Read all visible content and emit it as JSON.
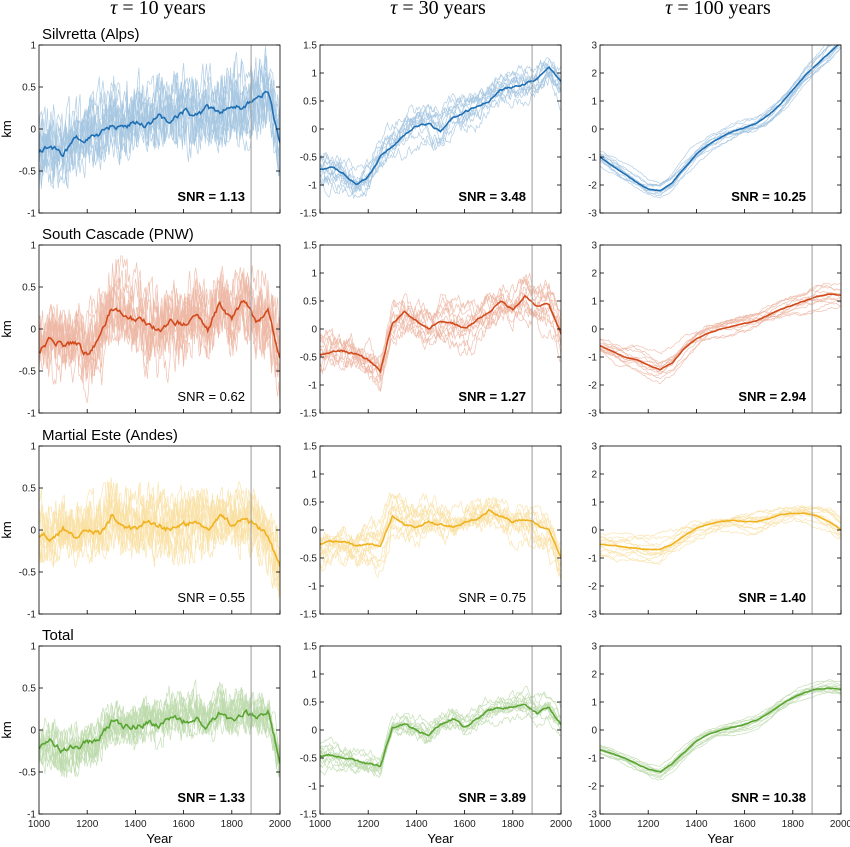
{
  "figure": {
    "column_titles": [
      {
        "symbol": "τ",
        "rest": " = 10 years"
      },
      {
        "symbol": "τ",
        "rest": " = 30 years"
      },
      {
        "symbol": "τ",
        "rest": " = 100 years"
      }
    ],
    "row_titles": [
      "Silvretta (Alps)",
      "South Cascade (PNW)",
      "Martial Este (Andes)",
      "Total"
    ],
    "ylabel": "km",
    "xlabel": "Year",
    "colors": {
      "Silvretta (Alps)": "#1f6fb4",
      "South Cascade (PNW)": "#d24a1c",
      "Martial Este (Andes)": "#f0b21e",
      "Total": "#5aa532",
      "reference_line": "#999999"
    },
    "reference_year": 1880
  },
  "chart_data": [
    {
      "type": "line",
      "row": 0,
      "col": 0,
      "title": "Silvretta (Alps)",
      "xlim": [
        1000,
        2000
      ],
      "ylim": [
        -1,
        1
      ],
      "yticks": [
        "-1",
        "-0.5",
        "0",
        "0.5",
        "1"
      ],
      "xticks": [],
      "ylabel": "km",
      "xlabel": "",
      "annotation": "SNR = 1.13",
      "annotation_bold": true,
      "ensemble_spread": 0.3,
      "x": [
        1000,
        1050,
        1100,
        1150,
        1200,
        1250,
        1300,
        1350,
        1400,
        1450,
        1500,
        1550,
        1600,
        1650,
        1700,
        1750,
        1800,
        1850,
        1900,
        1950,
        2000
      ],
      "series": [
        {
          "values": [
            -0.25,
            -0.2,
            -0.3,
            -0.15,
            -0.1,
            -0.05,
            0.05,
            0.0,
            0.1,
            0.05,
            0.15,
            0.1,
            0.2,
            0.15,
            0.25,
            0.2,
            0.3,
            0.25,
            0.35,
            0.45,
            -0.2
          ]
        }
      ]
    },
    {
      "type": "line",
      "row": 0,
      "col": 1,
      "title": "",
      "xlim": [
        1000,
        2000
      ],
      "ylim": [
        -1.5,
        1.5
      ],
      "yticks": [
        "-1.5",
        "-1",
        "-0.5",
        "0",
        "0.5",
        "1",
        "1.5"
      ],
      "xticks": [],
      "ylabel": "",
      "xlabel": "",
      "annotation": "SNR = 3.48",
      "annotation_bold": true,
      "ensemble_spread": 0.3,
      "x": [
        1000,
        1050,
        1100,
        1150,
        1200,
        1250,
        1300,
        1350,
        1400,
        1450,
        1500,
        1550,
        1600,
        1650,
        1700,
        1750,
        1800,
        1850,
        1900,
        1950,
        2000
      ],
      "series": [
        {
          "values": [
            -0.7,
            -0.7,
            -0.8,
            -1.0,
            -0.85,
            -0.5,
            -0.3,
            -0.1,
            0.05,
            0.1,
            -0.05,
            0.2,
            0.3,
            0.4,
            0.5,
            0.7,
            0.75,
            0.8,
            0.9,
            1.1,
            0.85
          ]
        }
      ]
    },
    {
      "type": "line",
      "row": 0,
      "col": 2,
      "title": "",
      "xlim": [
        1000,
        2000
      ],
      "ylim": [
        -3,
        3
      ],
      "yticks": [
        "-3",
        "-2",
        "-1",
        "0",
        "1",
        "2",
        "3"
      ],
      "xticks": [],
      "ylabel": "",
      "xlabel": "",
      "annotation": "SNR = 10.25",
      "annotation_bold": true,
      "ensemble_spread": 0.35,
      "x": [
        1000,
        1050,
        1100,
        1150,
        1200,
        1250,
        1300,
        1350,
        1400,
        1450,
        1500,
        1550,
        1600,
        1650,
        1700,
        1750,
        1800,
        1850,
        1900,
        1950,
        2000
      ],
      "series": [
        {
          "values": [
            -1.0,
            -1.3,
            -1.6,
            -1.9,
            -2.15,
            -2.2,
            -1.9,
            -1.4,
            -0.9,
            -0.55,
            -0.3,
            -0.1,
            0.05,
            0.2,
            0.5,
            0.9,
            1.4,
            1.9,
            2.3,
            2.7,
            3.1
          ]
        }
      ]
    },
    {
      "type": "line",
      "row": 1,
      "col": 0,
      "title": "South Cascade (PNW)",
      "xlim": [
        1000,
        2000
      ],
      "ylim": [
        -1,
        1
      ],
      "yticks": [
        "-1",
        "-0.5",
        "0",
        "0.5",
        "1"
      ],
      "xticks": [],
      "ylabel": "km",
      "xlabel": "",
      "annotation": "SNR = 0.62",
      "annotation_bold": false,
      "ensemble_spread": 0.3,
      "x": [
        1000,
        1050,
        1100,
        1150,
        1200,
        1250,
        1300,
        1350,
        1400,
        1450,
        1500,
        1550,
        1600,
        1650,
        1700,
        1750,
        1800,
        1850,
        1900,
        1950,
        2000
      ],
      "series": [
        {
          "values": [
            -0.25,
            -0.1,
            -0.2,
            -0.15,
            -0.3,
            -0.1,
            0.25,
            0.2,
            0.1,
            0.05,
            0.0,
            0.1,
            0.05,
            0.2,
            0.0,
            0.3,
            0.1,
            0.35,
            0.1,
            0.2,
            -0.35
          ]
        }
      ]
    },
    {
      "type": "line",
      "row": 1,
      "col": 1,
      "title": "",
      "xlim": [
        1000,
        2000
      ],
      "ylim": [
        -1.5,
        1.5
      ],
      "yticks": [
        "-1.5",
        "-1",
        "-0.5",
        "0",
        "0.5",
        "1",
        "1.5"
      ],
      "xticks": [],
      "ylabel": "",
      "xlabel": "",
      "annotation": "SNR = 1.27",
      "annotation_bold": true,
      "ensemble_spread": 0.35,
      "x": [
        1000,
        1050,
        1100,
        1150,
        1200,
        1250,
        1300,
        1350,
        1400,
        1450,
        1500,
        1550,
        1600,
        1650,
        1700,
        1750,
        1800,
        1850,
        1900,
        1950,
        2000
      ],
      "series": [
        {
          "values": [
            -0.45,
            -0.4,
            -0.4,
            -0.45,
            -0.55,
            -0.75,
            0.1,
            0.3,
            0.15,
            0.0,
            0.15,
            0.1,
            0.0,
            0.15,
            0.3,
            0.5,
            0.35,
            0.6,
            0.4,
            0.45,
            -0.1
          ]
        }
      ]
    },
    {
      "type": "line",
      "row": 1,
      "col": 2,
      "title": "",
      "xlim": [
        1000,
        2000
      ],
      "ylim": [
        -3,
        3
      ],
      "yticks": [
        "-3",
        "-2",
        "-1",
        "0",
        "1",
        "2",
        "3"
      ],
      "xticks": [],
      "ylabel": "",
      "xlabel": "",
      "annotation": "SNR = 2.94",
      "annotation_bold": true,
      "ensemble_spread": 0.45,
      "x": [
        1000,
        1050,
        1100,
        1150,
        1200,
        1250,
        1300,
        1350,
        1400,
        1450,
        1500,
        1550,
        1600,
        1650,
        1700,
        1750,
        1800,
        1850,
        1900,
        1950,
        2000
      ],
      "series": [
        {
          "values": [
            -0.6,
            -0.8,
            -1.0,
            -1.1,
            -1.3,
            -1.45,
            -1.2,
            -0.7,
            -0.35,
            -0.15,
            0.0,
            0.1,
            0.2,
            0.3,
            0.5,
            0.7,
            0.85,
            1.0,
            1.15,
            1.25,
            1.2
          ]
        }
      ]
    },
    {
      "type": "line",
      "row": 2,
      "col": 0,
      "title": "Martial Este (Andes)",
      "xlim": [
        1000,
        2000
      ],
      "ylim": [
        -1,
        1
      ],
      "yticks": [
        "-1",
        "-0.5",
        "0",
        "0.5",
        "1"
      ],
      "xticks": [],
      "ylabel": "km",
      "xlabel": "",
      "annotation": "SNR = 0.55",
      "annotation_bold": false,
      "ensemble_spread": 0.25,
      "x": [
        1000,
        1050,
        1100,
        1150,
        1200,
        1250,
        1300,
        1350,
        1400,
        1450,
        1500,
        1550,
        1600,
        1650,
        1700,
        1750,
        1800,
        1850,
        1900,
        1950,
        2000
      ],
      "series": [
        {
          "values": [
            -0.05,
            -0.1,
            0.0,
            -0.1,
            -0.05,
            -0.05,
            0.15,
            0.05,
            0.0,
            0.1,
            0.05,
            0.0,
            0.05,
            0.1,
            0.0,
            0.15,
            0.05,
            0.1,
            0.05,
            -0.05,
            -0.45
          ]
        }
      ]
    },
    {
      "type": "line",
      "row": 2,
      "col": 1,
      "title": "",
      "xlim": [
        1000,
        2000
      ],
      "ylim": [
        -1.5,
        1.5
      ],
      "yticks": [
        "-1.5",
        "-1",
        "-0.5",
        "0",
        "0.5",
        "1",
        "1.5"
      ],
      "xticks": [],
      "ylabel": "",
      "xlabel": "",
      "annotation": "SNR = 0.75",
      "annotation_bold": false,
      "ensemble_spread": 0.35,
      "x": [
        1000,
        1050,
        1100,
        1150,
        1200,
        1250,
        1300,
        1350,
        1400,
        1450,
        1500,
        1550,
        1600,
        1650,
        1700,
        1750,
        1800,
        1850,
        1900,
        1950,
        2000
      ],
      "series": [
        {
          "values": [
            -0.25,
            -0.2,
            -0.2,
            -0.3,
            -0.25,
            -0.3,
            0.25,
            0.1,
            0.05,
            0.15,
            0.1,
            0.05,
            0.15,
            0.2,
            0.35,
            0.25,
            0.15,
            0.2,
            0.1,
            0.0,
            -0.5
          ]
        }
      ]
    },
    {
      "type": "line",
      "row": 2,
      "col": 2,
      "title": "",
      "xlim": [
        1000,
        2000
      ],
      "ylim": [
        -3,
        3
      ],
      "yticks": [
        "-3",
        "-2",
        "-1",
        "0",
        "1",
        "2",
        "3"
      ],
      "xticks": [],
      "ylabel": "",
      "xlabel": "",
      "annotation": "SNR = 1.40",
      "annotation_bold": true,
      "ensemble_spread": 0.5,
      "x": [
        1000,
        1050,
        1100,
        1150,
        1200,
        1250,
        1300,
        1350,
        1400,
        1450,
        1500,
        1550,
        1600,
        1650,
        1700,
        1750,
        1800,
        1850,
        1900,
        1950,
        2000
      ],
      "series": [
        {
          "values": [
            -0.5,
            -0.55,
            -0.6,
            -0.65,
            -0.7,
            -0.7,
            -0.5,
            -0.2,
            0.05,
            0.2,
            0.3,
            0.35,
            0.3,
            0.3,
            0.4,
            0.55,
            0.6,
            0.6,
            0.5,
            0.3,
            0.0
          ]
        }
      ]
    },
    {
      "type": "line",
      "row": 3,
      "col": 0,
      "title": "Total",
      "xlim": [
        1000,
        2000
      ],
      "ylim": [
        -1,
        1
      ],
      "yticks": [
        "-1",
        "-0.5",
        "0",
        "0.5",
        "1"
      ],
      "xticks": [
        "1000",
        "1200",
        "1400",
        "1600",
        "1800",
        "2000"
      ],
      "ylabel": "km",
      "xlabel": "Year",
      "annotation": "SNR = 1.33",
      "annotation_bold": true,
      "ensemble_spread": 0.18,
      "x": [
        1000,
        1050,
        1100,
        1150,
        1200,
        1250,
        1300,
        1350,
        1400,
        1450,
        1500,
        1550,
        1600,
        1650,
        1700,
        1750,
        1800,
        1850,
        1900,
        1950,
        2000
      ],
      "series": [
        {
          "values": [
            -0.2,
            -0.15,
            -0.25,
            -0.2,
            -0.15,
            -0.1,
            0.1,
            0.05,
            0.05,
            0.1,
            0.05,
            0.15,
            0.1,
            0.15,
            0.05,
            0.2,
            0.1,
            0.2,
            0.15,
            0.2,
            -0.35
          ]
        }
      ]
    },
    {
      "type": "line",
      "row": 3,
      "col": 1,
      "title": "",
      "xlim": [
        1000,
        2000
      ],
      "ylim": [
        -1.5,
        1.5
      ],
      "yticks": [
        "-1.5",
        "-1",
        "-0.5",
        "0",
        "0.5",
        "1",
        "1.5"
      ],
      "xticks": [
        "1000",
        "1200",
        "1400",
        "1600",
        "1800",
        "2000"
      ],
      "ylabel": "",
      "xlabel": "Year",
      "annotation": "SNR = 3.89",
      "annotation_bold": true,
      "ensemble_spread": 0.2,
      "x": [
        1000,
        1050,
        1100,
        1150,
        1200,
        1250,
        1300,
        1350,
        1400,
        1450,
        1500,
        1550,
        1600,
        1650,
        1700,
        1750,
        1800,
        1850,
        1900,
        1950,
        2000
      ],
      "series": [
        {
          "values": [
            -0.45,
            -0.45,
            -0.5,
            -0.55,
            -0.6,
            -0.65,
            0.05,
            0.1,
            0.0,
            -0.1,
            0.1,
            0.2,
            0.05,
            0.2,
            0.35,
            0.4,
            0.4,
            0.45,
            0.3,
            0.4,
            0.1
          ]
        }
      ]
    },
    {
      "type": "line",
      "row": 3,
      "col": 2,
      "title": "",
      "xlim": [
        1000,
        2000
      ],
      "ylim": [
        -3,
        3
      ],
      "yticks": [
        "-3",
        "-2",
        "-1",
        "0",
        "1",
        "2",
        "3"
      ],
      "xticks": [
        "1000",
        "1200",
        "1400",
        "1600",
        "1800",
        "2000"
      ],
      "ylabel": "",
      "xlabel": "Year",
      "annotation": "SNR = 10.38",
      "annotation_bold": true,
      "ensemble_spread": 0.25,
      "x": [
        1000,
        1050,
        1100,
        1150,
        1200,
        1250,
        1300,
        1350,
        1400,
        1450,
        1500,
        1550,
        1600,
        1650,
        1700,
        1750,
        1800,
        1850,
        1900,
        1950,
        2000
      ],
      "series": [
        {
          "values": [
            -0.7,
            -0.85,
            -1.0,
            -1.2,
            -1.4,
            -1.5,
            -1.2,
            -0.8,
            -0.4,
            -0.15,
            0.0,
            0.1,
            0.2,
            0.35,
            0.6,
            0.9,
            1.15,
            1.35,
            1.45,
            1.5,
            1.45
          ]
        }
      ]
    }
  ]
}
